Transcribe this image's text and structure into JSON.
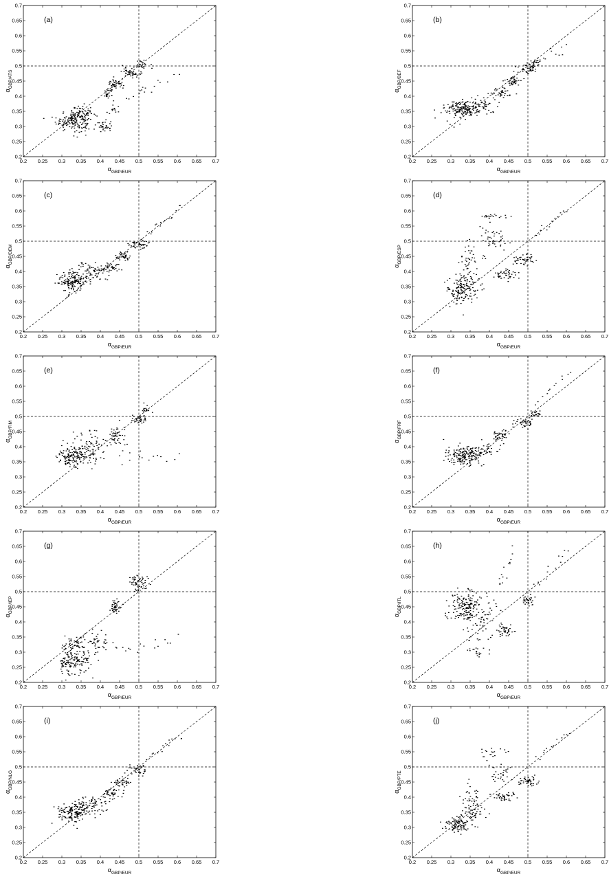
{
  "chart_data": [
    {
      "panel": "(a)",
      "type": "scatter",
      "xlabel": {
        "symbol": "α",
        "subscript": "GBP/EUR"
      },
      "ylabel": {
        "symbol": "α",
        "subscript": "GBP/ATS"
      },
      "xlim": [
        0.2,
        0.7
      ],
      "ylim": [
        0.2,
        0.7
      ],
      "xticks": [
        "0.2",
        "0.25",
        "0.3",
        "0.35",
        "0.4",
        "0.45",
        "0.5",
        "0.55",
        "0.6",
        "0.65",
        "0.7"
      ],
      "yticks": [
        "0.2",
        "0.25",
        "0.3",
        "0.35",
        "0.4",
        "0.45",
        "0.5",
        "0.55",
        "0.6",
        "0.65",
        "0.7"
      ],
      "reference_lines": {
        "diagonal": true,
        "vline_x": 0.5,
        "hline_y": 0.5
      },
      "grid": false,
      "marker_color": "#000000",
      "clusters": [
        {
          "x": 0.33,
          "y": 0.32,
          "sx": 0.022,
          "sy": 0.018,
          "n": 160
        },
        {
          "x": 0.36,
          "y": 0.34,
          "sx": 0.015,
          "sy": 0.015,
          "n": 50
        },
        {
          "x": 0.42,
          "y": 0.41,
          "sx": 0.008,
          "sy": 0.007,
          "n": 25
        },
        {
          "x": 0.44,
          "y": 0.44,
          "sx": 0.01,
          "sy": 0.008,
          "n": 45
        },
        {
          "x": 0.48,
          "y": 0.48,
          "sx": 0.012,
          "sy": 0.008,
          "n": 45
        },
        {
          "x": 0.51,
          "y": 0.505,
          "sx": 0.008,
          "sy": 0.007,
          "n": 25
        },
        {
          "x": 0.41,
          "y": 0.3,
          "sx": 0.01,
          "sy": 0.01,
          "n": 30
        },
        {
          "x": 0.43,
          "y": 0.35,
          "sx": 0.008,
          "sy": 0.008,
          "n": 12
        }
      ],
      "trails": [
        {
          "x1": 0.44,
          "y1": 0.36,
          "x2": 0.6,
          "y2": 0.47,
          "n": 14,
          "j": 0.012
        },
        {
          "x1": 0.5,
          "y1": 0.41,
          "x2": 0.52,
          "y2": 0.43,
          "n": 4,
          "j": 0.005
        }
      ]
    },
    {
      "panel": "(b)",
      "type": "scatter",
      "xlabel": {
        "symbol": "α",
        "subscript": "GBP/EUR"
      },
      "ylabel": {
        "symbol": "α",
        "subscript": "GBP/BEF"
      },
      "xlim": [
        0.2,
        0.7
      ],
      "ylim": [
        0.2,
        0.7
      ],
      "xticks": [
        "0.2",
        "0.25",
        "0.3",
        "0.35",
        "0.4",
        "0.45",
        "0.5",
        "0.55",
        "0.6",
        "0.65",
        "0.7"
      ],
      "yticks": [
        "0.2",
        "0.25",
        "0.3",
        "0.35",
        "0.4",
        "0.45",
        "0.5",
        "0.55",
        "0.6",
        "0.65",
        "0.7"
      ],
      "reference_lines": {
        "diagonal": true,
        "vline_x": 0.5,
        "hline_y": 0.5
      },
      "grid": false,
      "marker_color": "#000000",
      "clusters": [
        {
          "x": 0.33,
          "y": 0.36,
          "sx": 0.022,
          "sy": 0.014,
          "n": 170
        },
        {
          "x": 0.38,
          "y": 0.37,
          "sx": 0.02,
          "sy": 0.015,
          "n": 50
        },
        {
          "x": 0.43,
          "y": 0.41,
          "sx": 0.015,
          "sy": 0.01,
          "n": 40
        },
        {
          "x": 0.46,
          "y": 0.45,
          "sx": 0.012,
          "sy": 0.008,
          "n": 40
        },
        {
          "x": 0.5,
          "y": 0.49,
          "sx": 0.012,
          "sy": 0.008,
          "n": 45
        },
        {
          "x": 0.52,
          "y": 0.51,
          "sx": 0.008,
          "sy": 0.006,
          "n": 20
        }
      ],
      "trails": [
        {
          "x1": 0.52,
          "y1": 0.52,
          "x2": 0.6,
          "y2": 0.56,
          "n": 12,
          "j": 0.008
        },
        {
          "x1": 0.3,
          "y1": 0.31,
          "x2": 0.34,
          "y2": 0.34,
          "n": 8,
          "j": 0.008
        }
      ]
    },
    {
      "panel": "(c)",
      "type": "scatter",
      "xlabel": {
        "symbol": "α",
        "subscript": "GBP/EUR"
      },
      "ylabel": {
        "symbol": "α",
        "subscript": "GBP/DEM"
      },
      "xlim": [
        0.2,
        0.7
      ],
      "ylim": [
        0.2,
        0.7
      ],
      "xticks": [
        "0.2",
        "0.25",
        "0.3",
        "0.35",
        "0.4",
        "0.45",
        "0.5",
        "0.55",
        "0.6",
        "0.65",
        "0.7"
      ],
      "yticks": [
        "0.2",
        "0.25",
        "0.3",
        "0.35",
        "0.4",
        "0.45",
        "0.5",
        "0.55",
        "0.6",
        "0.65",
        "0.7"
      ],
      "reference_lines": {
        "diagonal": true,
        "vline_x": 0.5,
        "hline_y": 0.5
      },
      "grid": false,
      "marker_color": "#000000",
      "clusters": [
        {
          "x": 0.33,
          "y": 0.37,
          "sx": 0.02,
          "sy": 0.015,
          "n": 160
        },
        {
          "x": 0.38,
          "y": 0.4,
          "sx": 0.02,
          "sy": 0.015,
          "n": 60
        },
        {
          "x": 0.43,
          "y": 0.41,
          "sx": 0.012,
          "sy": 0.01,
          "n": 35
        },
        {
          "x": 0.46,
          "y": 0.45,
          "sx": 0.012,
          "sy": 0.008,
          "n": 40
        },
        {
          "x": 0.5,
          "y": 0.49,
          "sx": 0.012,
          "sy": 0.008,
          "n": 45
        }
      ],
      "trails": [
        {
          "x1": 0.52,
          "y1": 0.52,
          "x2": 0.61,
          "y2": 0.61,
          "n": 14,
          "j": 0.008
        },
        {
          "x1": 0.31,
          "y1": 0.32,
          "x2": 0.35,
          "y2": 0.34,
          "n": 10,
          "j": 0.008
        }
      ]
    },
    {
      "panel": "(d)",
      "type": "scatter",
      "xlabel": {
        "symbol": "α",
        "subscript": "GBP/EUR"
      },
      "ylabel": {
        "symbol": "α",
        "subscript": "GBP/ESP"
      },
      "xlim": [
        0.2,
        0.7
      ],
      "ylim": [
        0.2,
        0.7
      ],
      "xticks": [
        "0.2",
        "0.25",
        "0.3",
        "0.35",
        "0.4",
        "0.45",
        "0.5",
        "0.55",
        "0.6",
        "0.65",
        "0.7"
      ],
      "yticks": [
        "0.2",
        "0.25",
        "0.3",
        "0.35",
        "0.4",
        "0.45",
        "0.5",
        "0.55",
        "0.6",
        "0.65",
        "0.7"
      ],
      "reference_lines": {
        "diagonal": true,
        "vline_x": 0.5,
        "hline_y": 0.5
      },
      "grid": false,
      "marker_color": "#000000",
      "clusters": [
        {
          "x": 0.33,
          "y": 0.34,
          "sx": 0.02,
          "sy": 0.025,
          "n": 150
        },
        {
          "x": 0.35,
          "y": 0.43,
          "sx": 0.015,
          "sy": 0.03,
          "n": 50
        },
        {
          "x": 0.44,
          "y": 0.39,
          "sx": 0.015,
          "sy": 0.01,
          "n": 45
        },
        {
          "x": 0.49,
          "y": 0.44,
          "sx": 0.015,
          "sy": 0.01,
          "n": 45
        },
        {
          "x": 0.41,
          "y": 0.5,
          "sx": 0.015,
          "sy": 0.015,
          "n": 30
        },
        {
          "x": 0.41,
          "y": 0.58,
          "sx": 0.02,
          "sy": 0.008,
          "n": 20
        }
      ],
      "trails": [
        {
          "x1": 0.52,
          "y1": 0.52,
          "x2": 0.6,
          "y2": 0.6,
          "n": 12,
          "j": 0.006
        },
        {
          "x1": 0.38,
          "y1": 0.55,
          "x2": 0.45,
          "y2": 0.5,
          "n": 12,
          "j": 0.012
        }
      ]
    },
    {
      "panel": "(e)",
      "type": "scatter",
      "xlabel": {
        "symbol": "α",
        "subscript": "GBP/EUR"
      },
      "ylabel": {
        "symbol": "α",
        "subscript": "GBP/FIM"
      },
      "xlim": [
        0.2,
        0.7
      ],
      "ylim": [
        0.2,
        0.7
      ],
      "xticks": [
        "0.2",
        "0.25",
        "0.3",
        "0.35",
        "0.4",
        "0.45",
        "0.5",
        "0.55",
        "0.6",
        "0.65",
        "0.7"
      ],
      "yticks": [
        "0.2",
        "0.25",
        "0.3",
        "0.35",
        "0.4",
        "0.45",
        "0.5",
        "0.55",
        "0.6",
        "0.65",
        "0.7"
      ],
      "reference_lines": {
        "diagonal": true,
        "vline_x": 0.5,
        "hline_y": 0.5
      },
      "grid": false,
      "marker_color": "#000000",
      "clusters": [
        {
          "x": 0.33,
          "y": 0.37,
          "sx": 0.02,
          "sy": 0.02,
          "n": 150
        },
        {
          "x": 0.38,
          "y": 0.4,
          "sx": 0.03,
          "sy": 0.03,
          "n": 80
        },
        {
          "x": 0.44,
          "y": 0.44,
          "sx": 0.01,
          "sy": 0.015,
          "n": 40
        },
        {
          "x": 0.5,
          "y": 0.49,
          "sx": 0.01,
          "sy": 0.008,
          "n": 35
        },
        {
          "x": 0.52,
          "y": 0.52,
          "sx": 0.008,
          "sy": 0.01,
          "n": 15
        }
      ],
      "trails": [
        {
          "x1": 0.45,
          "y1": 0.36,
          "x2": 0.6,
          "y2": 0.37,
          "n": 14,
          "j": 0.012
        }
      ]
    },
    {
      "panel": "(f)",
      "type": "scatter",
      "xlabel": {
        "symbol": "α",
        "subscript": "GBP/EUR"
      },
      "ylabel": {
        "symbol": "α",
        "subscript": "GBP/FRF"
      },
      "xlim": [
        0.2,
        0.7
      ],
      "ylim": [
        0.2,
        0.7
      ],
      "xticks": [
        "0.2",
        "0.25",
        "0.3",
        "0.35",
        "0.4",
        "0.45",
        "0.5",
        "0.55",
        "0.6",
        "0.65",
        "0.7"
      ],
      "yticks": [
        "0.2",
        "0.25",
        "0.3",
        "0.35",
        "0.4",
        "0.45",
        "0.5",
        "0.55",
        "0.6",
        "0.65",
        "0.7"
      ],
      "reference_lines": {
        "diagonal": true,
        "vline_x": 0.5,
        "hline_y": 0.5
      },
      "grid": false,
      "marker_color": "#000000",
      "clusters": [
        {
          "x": 0.33,
          "y": 0.37,
          "sx": 0.022,
          "sy": 0.015,
          "n": 170
        },
        {
          "x": 0.38,
          "y": 0.39,
          "sx": 0.02,
          "sy": 0.012,
          "n": 50
        },
        {
          "x": 0.43,
          "y": 0.44,
          "sx": 0.012,
          "sy": 0.01,
          "n": 45
        },
        {
          "x": 0.49,
          "y": 0.48,
          "sx": 0.012,
          "sy": 0.008,
          "n": 40
        },
        {
          "x": 0.52,
          "y": 0.51,
          "sx": 0.008,
          "sy": 0.006,
          "n": 20
        }
      ],
      "trails": [
        {
          "x1": 0.52,
          "y1": 0.54,
          "x2": 0.61,
          "y2": 0.66,
          "n": 12,
          "j": 0.008
        }
      ]
    },
    {
      "panel": "(g)",
      "type": "scatter",
      "xlabel": {
        "symbol": "α",
        "subscript": "GBP/EUR"
      },
      "ylabel": {
        "symbol": "α",
        "subscript": "GBP/IEP"
      },
      "xlim": [
        0.2,
        0.7
      ],
      "ylim": [
        0.2,
        0.7
      ],
      "xticks": [
        "0.2",
        "0.25",
        "0.3",
        "0.35",
        "0.4",
        "0.45",
        "0.5",
        "0.55",
        "0.6",
        "0.65",
        "0.7"
      ],
      "yticks": [
        "0.2",
        "0.25",
        "0.3",
        "0.35",
        "0.4",
        "0.45",
        "0.5",
        "0.55",
        "0.6",
        "0.65",
        "0.7"
      ],
      "reference_lines": {
        "diagonal": true,
        "vline_x": 0.5,
        "hline_y": 0.5
      },
      "grid": false,
      "marker_color": "#000000",
      "clusters": [
        {
          "x": 0.33,
          "y": 0.27,
          "sx": 0.02,
          "sy": 0.02,
          "n": 150
        },
        {
          "x": 0.33,
          "y": 0.33,
          "sx": 0.015,
          "sy": 0.012,
          "n": 40
        },
        {
          "x": 0.39,
          "y": 0.33,
          "sx": 0.02,
          "sy": 0.02,
          "n": 50
        },
        {
          "x": 0.44,
          "y": 0.45,
          "sx": 0.008,
          "sy": 0.012,
          "n": 45
        },
        {
          "x": 0.5,
          "y": 0.53,
          "sx": 0.01,
          "sy": 0.012,
          "n": 55
        }
      ],
      "trails": [
        {
          "x1": 0.45,
          "y1": 0.3,
          "x2": 0.6,
          "y2": 0.35,
          "n": 14,
          "j": 0.015
        }
      ]
    },
    {
      "panel": "(h)",
      "type": "scatter",
      "xlabel": {
        "symbol": "α",
        "subscript": "GBP/EUR"
      },
      "ylabel": {
        "symbol": "α",
        "subscript": "GBP/ITL"
      },
      "xlim": [
        0.2,
        0.7
      ],
      "ylim": [
        0.2,
        0.7
      ],
      "xticks": [
        "0.2",
        "0.25",
        "0.3",
        "0.35",
        "0.4",
        "0.45",
        "0.5",
        "0.55",
        "0.6",
        "0.65",
        "0.7"
      ],
      "yticks": [
        "0.2",
        "0.25",
        "0.3",
        "0.35",
        "0.4",
        "0.45",
        "0.5",
        "0.55",
        "0.6",
        "0.65",
        "0.7"
      ],
      "reference_lines": {
        "diagonal": true,
        "vline_x": 0.5,
        "hline_y": 0.5
      },
      "grid": false,
      "marker_color": "#000000",
      "clusters": [
        {
          "x": 0.34,
          "y": 0.45,
          "sx": 0.02,
          "sy": 0.025,
          "n": 160
        },
        {
          "x": 0.38,
          "y": 0.41,
          "sx": 0.025,
          "sy": 0.04,
          "n": 60
        },
        {
          "x": 0.44,
          "y": 0.37,
          "sx": 0.01,
          "sy": 0.01,
          "n": 40
        },
        {
          "x": 0.5,
          "y": 0.47,
          "sx": 0.01,
          "sy": 0.01,
          "n": 30
        },
        {
          "x": 0.37,
          "y": 0.3,
          "sx": 0.015,
          "sy": 0.008,
          "n": 20
        }
      ],
      "trails": [
        {
          "x1": 0.42,
          "y1": 0.5,
          "x2": 0.46,
          "y2": 0.64,
          "n": 14,
          "j": 0.012
        },
        {
          "x1": 0.52,
          "y1": 0.52,
          "x2": 0.61,
          "y2": 0.64,
          "n": 12,
          "j": 0.01
        }
      ]
    },
    {
      "panel": "(i)",
      "type": "scatter",
      "xlabel": {
        "symbol": "α",
        "subscript": "GBP/EUR"
      },
      "ylabel": {
        "symbol": "α",
        "subscript": "GBP/NLG"
      },
      "xlim": [
        0.2,
        0.7
      ],
      "ylim": [
        0.2,
        0.7
      ],
      "xticks": [
        "0.2",
        "0.25",
        "0.3",
        "0.35",
        "0.4",
        "0.45",
        "0.5",
        "0.55",
        "0.6",
        "0.65",
        "0.7"
      ],
      "yticks": [
        "0.2",
        "0.25",
        "0.3",
        "0.35",
        "0.4",
        "0.45",
        "0.5",
        "0.55",
        "0.6",
        "0.65",
        "0.7"
      ],
      "reference_lines": {
        "diagonal": true,
        "vline_x": 0.5,
        "hline_y": 0.5
      },
      "grid": false,
      "marker_color": "#000000",
      "clusters": [
        {
          "x": 0.33,
          "y": 0.35,
          "sx": 0.02,
          "sy": 0.018,
          "n": 160
        },
        {
          "x": 0.38,
          "y": 0.38,
          "sx": 0.02,
          "sy": 0.015,
          "n": 55
        },
        {
          "x": 0.43,
          "y": 0.41,
          "sx": 0.012,
          "sy": 0.01,
          "n": 40
        },
        {
          "x": 0.46,
          "y": 0.45,
          "sx": 0.012,
          "sy": 0.008,
          "n": 40
        },
        {
          "x": 0.5,
          "y": 0.49,
          "sx": 0.012,
          "sy": 0.008,
          "n": 40
        }
      ],
      "trails": [
        {
          "x1": 0.52,
          "y1": 0.53,
          "x2": 0.61,
          "y2": 0.6,
          "n": 14,
          "j": 0.008
        }
      ]
    },
    {
      "panel": "(j)",
      "type": "scatter",
      "xlabel": {
        "symbol": "α",
        "subscript": "GBP/EUR"
      },
      "ylabel": {
        "symbol": "α",
        "subscript": "GBP/PTE"
      },
      "xlim": [
        0.2,
        0.7
      ],
      "ylim": [
        0.2,
        0.7
      ],
      "xticks": [
        "0.2",
        "0.25",
        "0.3",
        "0.35",
        "0.4",
        "0.45",
        "0.5",
        "0.55",
        "0.6",
        "0.65",
        "0.7"
      ],
      "yticks": [
        "0.2",
        "0.25",
        "0.3",
        "0.35",
        "0.4",
        "0.45",
        "0.5",
        "0.55",
        "0.6",
        "0.65",
        "0.7"
      ],
      "reference_lines": {
        "diagonal": true,
        "vline_x": 0.5,
        "hline_y": 0.5
      },
      "grid": false,
      "marker_color": "#000000",
      "clusters": [
        {
          "x": 0.32,
          "y": 0.31,
          "sx": 0.015,
          "sy": 0.012,
          "n": 110
        },
        {
          "x": 0.36,
          "y": 0.35,
          "sx": 0.02,
          "sy": 0.015,
          "n": 50
        },
        {
          "x": 0.44,
          "y": 0.4,
          "sx": 0.015,
          "sy": 0.008,
          "n": 45
        },
        {
          "x": 0.5,
          "y": 0.45,
          "sx": 0.015,
          "sy": 0.008,
          "n": 45
        },
        {
          "x": 0.35,
          "y": 0.4,
          "sx": 0.012,
          "sy": 0.02,
          "n": 30
        },
        {
          "x": 0.43,
          "y": 0.47,
          "sx": 0.012,
          "sy": 0.012,
          "n": 25
        },
        {
          "x": 0.41,
          "y": 0.55,
          "sx": 0.015,
          "sy": 0.008,
          "n": 15
        }
      ],
      "trails": [
        {
          "x1": 0.52,
          "y1": 0.52,
          "x2": 0.61,
          "y2": 0.62,
          "n": 12,
          "j": 0.008
        },
        {
          "x1": 0.38,
          "y1": 0.53,
          "x2": 0.44,
          "y2": 0.49,
          "n": 10,
          "j": 0.012
        }
      ]
    }
  ]
}
